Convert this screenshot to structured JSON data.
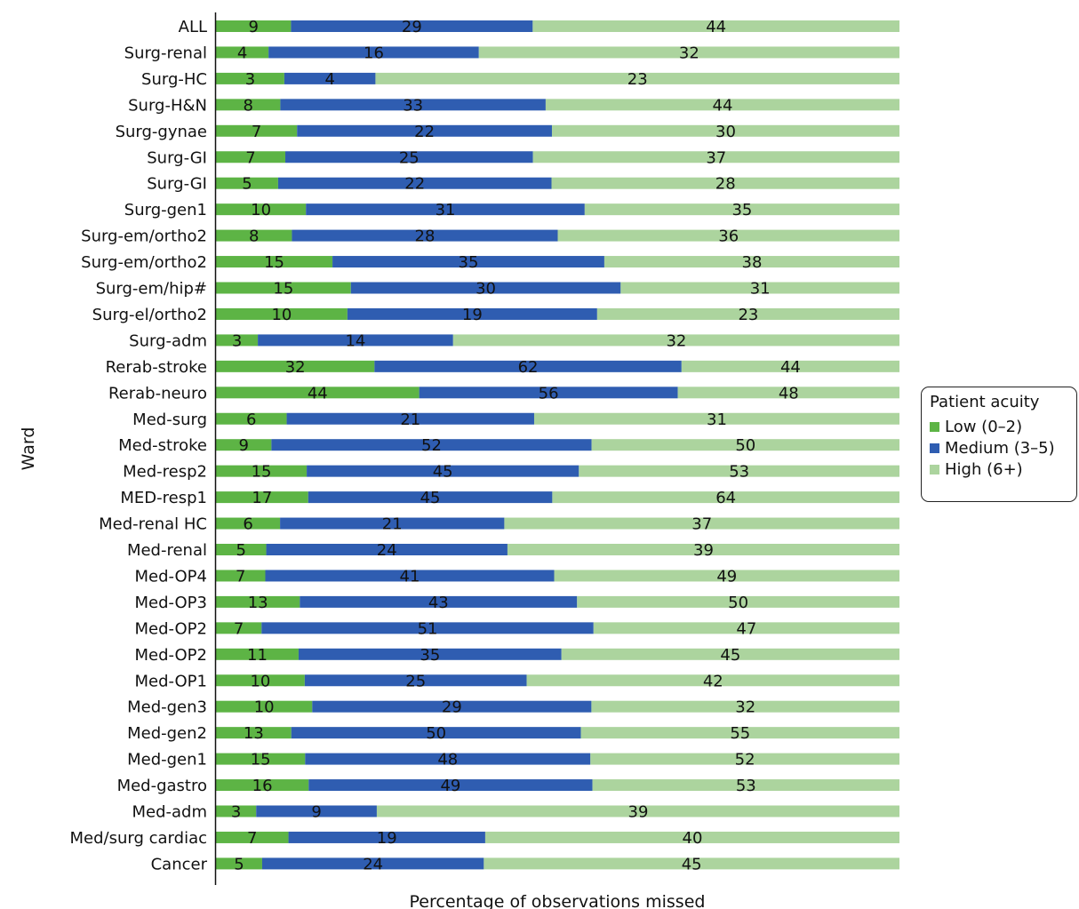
{
  "chart_data": {
    "type": "bar",
    "orientation": "horizontal",
    "stacked": true,
    "normalized": true,
    "title": "",
    "xlabel": "Percentage of observations missed",
    "ylabel": "Ward",
    "legend": {
      "title": "Patient acuity",
      "position": "right"
    },
    "categories": [
      "ALL",
      "Surg-renal",
      "Surg-HC",
      "Surg-H&N",
      "Surg-gynae",
      "Surg-GI",
      "Surg-GI",
      "Surg-gen1",
      "Surg-em/ortho2",
      "Surg-em/ortho2",
      "Surg-em/hip#",
      "Surg-el/ortho2",
      "Surg-adm",
      "Rerab-stroke",
      "Rerab-neuro",
      "Med-surg",
      "Med-stroke",
      "Med-resp2",
      "MED-resp1",
      "Med-renal HC",
      "Med-renal",
      "Med-OP4",
      "Med-OP3",
      "Med-OP2",
      "Med-OP2",
      "Med-OP1",
      "Med-gen3",
      "Med-gen2",
      "Med-gen1",
      "Med-gastro",
      "Med-adm",
      "Med/surg cardiac",
      "Cancer"
    ],
    "series": [
      {
        "name": "Low (0–2)",
        "color": "#5db445",
        "values": [
          9,
          4,
          3,
          8,
          7,
          7,
          5,
          10,
          8,
          15,
          15,
          10,
          3,
          32,
          44,
          6,
          9,
          15,
          17,
          6,
          5,
          7,
          13,
          7,
          11,
          10,
          10,
          13,
          15,
          16,
          3,
          7,
          5
        ]
      },
      {
        "name": "Medium (3–5)",
        "color": "#2f5db1",
        "values": [
          29,
          16,
          4,
          33,
          22,
          25,
          22,
          31,
          28,
          35,
          30,
          19,
          14,
          62,
          56,
          21,
          52,
          45,
          45,
          21,
          24,
          41,
          43,
          51,
          35,
          25,
          29,
          50,
          48,
          49,
          9,
          19,
          24
        ]
      },
      {
        "name": "High (6+)",
        "color": "#acd49e",
        "values": [
          44,
          32,
          23,
          44,
          30,
          37,
          28,
          35,
          36,
          38,
          31,
          23,
          32,
          44,
          48,
          31,
          50,
          53,
          64,
          37,
          39,
          49,
          50,
          47,
          45,
          42,
          32,
          55,
          52,
          53,
          39,
          40,
          45
        ]
      }
    ],
    "grid": false
  }
}
